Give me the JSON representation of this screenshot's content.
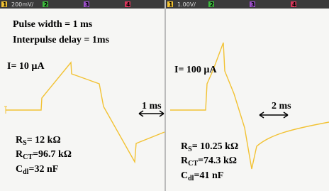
{
  "panels": [
    {
      "header": {
        "ch1": "1",
        "scale": "200mV/",
        "ch2": "2",
        "ch3": "3",
        "ch4": "4"
      },
      "lines": [
        "Pulse width = 1 ms",
        "Interpulse delay = 1ms"
      ],
      "current": "I= 10 µA",
      "time_scale": "1 ms",
      "params": [
        {
          "main": "R",
          "sub": "S",
          "rest": "= 12 kΩ"
        },
        {
          "main": "R",
          "sub": "CT",
          "rest": "=96.7 kΩ"
        },
        {
          "main": "C",
          "sub": "dl",
          "rest": "=32 nF"
        }
      ]
    },
    {
      "header": {
        "ch1": "1",
        "scale": "1.00V/",
        "ch2": "2",
        "ch3": "3",
        "ch4": "4"
      },
      "current": "I= 100 µA",
      "time_scale": "2 ms",
      "params": [
        {
          "main": "R",
          "sub": "S",
          "rest": "= 10.25 kΩ"
        },
        {
          "main": "R",
          "sub": "CT",
          "rest": "=74.3 kΩ"
        },
        {
          "main": "C",
          "sub": "dl",
          "rest": "=41 nF"
        }
      ]
    }
  ]
}
